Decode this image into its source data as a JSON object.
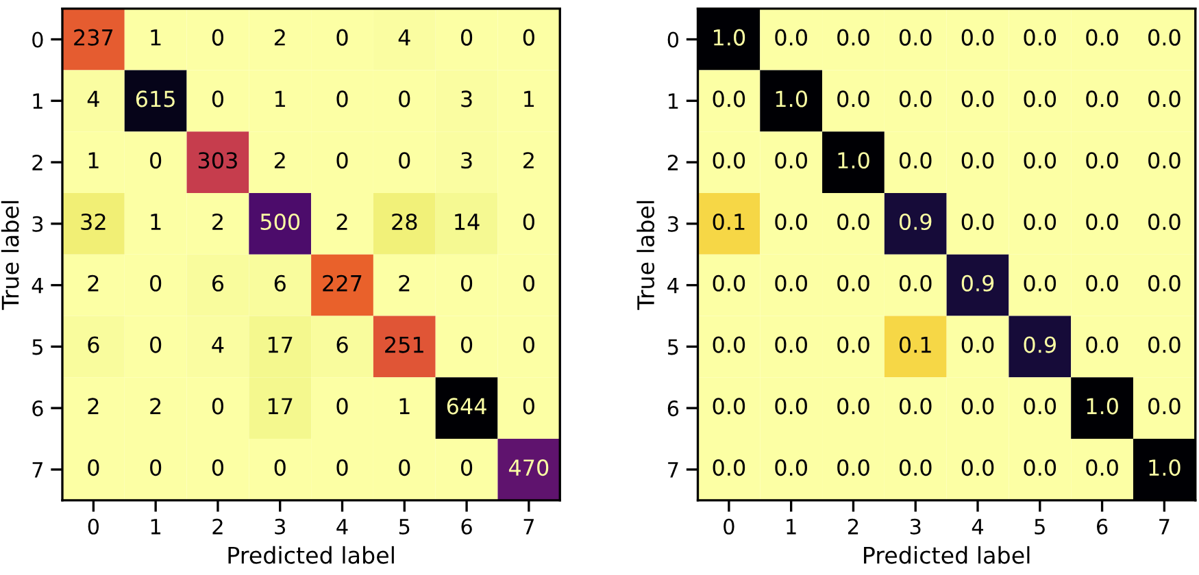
{
  "chart_data": [
    {
      "type": "heatmap",
      "xlabel": "Predicted label",
      "ylabel": "True label",
      "categories": [
        "0",
        "1",
        "2",
        "3",
        "4",
        "5",
        "6",
        "7"
      ],
      "y_categories": [
        "0",
        "1",
        "2",
        "3",
        "4",
        "5",
        "6",
        "7"
      ],
      "data_labels": true,
      "cells": [
        [
          237,
          1,
          0,
          2,
          0,
          4,
          0,
          0
        ],
        [
          4,
          615,
          0,
          1,
          0,
          0,
          3,
          1
        ],
        [
          1,
          0,
          303,
          2,
          0,
          0,
          3,
          2
        ],
        [
          32,
          1,
          2,
          500,
          2,
          28,
          14,
          0
        ],
        [
          2,
          0,
          6,
          6,
          227,
          2,
          0,
          0
        ],
        [
          6,
          0,
          4,
          17,
          6,
          251,
          0,
          0
        ],
        [
          2,
          2,
          0,
          17,
          0,
          1,
          644,
          0
        ],
        [
          0,
          0,
          0,
          0,
          0,
          0,
          0,
          470
        ]
      ]
    },
    {
      "type": "heatmap",
      "xlabel": "Predicted label",
      "ylabel": "True label",
      "categories": [
        "0",
        "1",
        "2",
        "3",
        "4",
        "5",
        "6",
        "7"
      ],
      "y_categories": [
        "0",
        "1",
        "2",
        "3",
        "4",
        "5",
        "6",
        "7"
      ],
      "data_labels": true,
      "cells": [
        [
          1.0,
          0.0,
          0.0,
          0.0,
          0.0,
          0.0,
          0.0,
          0.0
        ],
        [
          0.0,
          1.0,
          0.0,
          0.0,
          0.0,
          0.0,
          0.0,
          0.0
        ],
        [
          0.0,
          0.0,
          1.0,
          0.0,
          0.0,
          0.0,
          0.0,
          0.0
        ],
        [
          0.1,
          0.0,
          0.0,
          0.9,
          0.0,
          0.0,
          0.0,
          0.0
        ],
        [
          0.0,
          0.0,
          0.0,
          0.0,
          0.9,
          0.0,
          0.0,
          0.0
        ],
        [
          0.0,
          0.0,
          0.0,
          0.1,
          0.0,
          0.9,
          0.0,
          0.0
        ],
        [
          0.0,
          0.0,
          0.0,
          0.0,
          0.0,
          0.0,
          1.0,
          0.0
        ],
        [
          0.0,
          0.0,
          0.0,
          0.0,
          0.0,
          0.0,
          0.0,
          1.0
        ]
      ],
      "cell_labels": [
        [
          "1.0",
          "0.0",
          "0.0",
          "0.0",
          "0.0",
          "0.0",
          "0.0",
          "0.0"
        ],
        [
          "0.0",
          "1.0",
          "0.0",
          "0.0",
          "0.0",
          "0.0",
          "0.0",
          "0.0"
        ],
        [
          "0.0",
          "0.0",
          "1.0",
          "0.0",
          "0.0",
          "0.0",
          "0.0",
          "0.0"
        ],
        [
          "0.1",
          "0.0",
          "0.0",
          "0.9",
          "0.0",
          "0.0",
          "0.0",
          "0.0"
        ],
        [
          "0.0",
          "0.0",
          "0.0",
          "0.0",
          "0.9",
          "0.0",
          "0.0",
          "0.0"
        ],
        [
          "0.0",
          "0.0",
          "0.0",
          "0.1",
          "0.0",
          "0.9",
          "0.0",
          "0.0"
        ],
        [
          "0.0",
          "0.0",
          "0.0",
          "0.0",
          "0.0",
          "0.0",
          "1.0",
          "0.0"
        ],
        [
          "0.0",
          "0.0",
          "0.0",
          "0.0",
          "0.0",
          "0.0",
          "0.0",
          "1.0"
        ]
      ]
    }
  ]
}
